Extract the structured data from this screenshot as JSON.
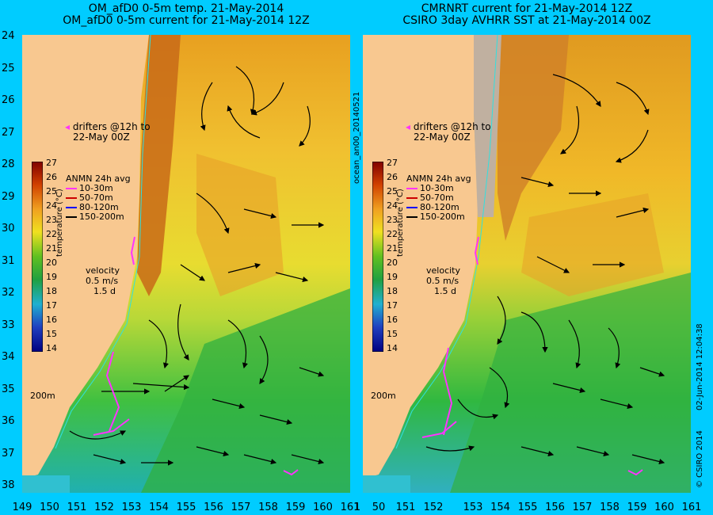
{
  "left_panel": {
    "title_line1": "OM_afD0 0-5m temp. 21-May-2014",
    "title_line2": "OM_afD0 0-5m current for 21-May-2014 12Z"
  },
  "right_panel": {
    "title_line1": "CMRNRT current for 21-May-2014 12Z",
    "title_line2": "CSIRO 3day AVHRR SST at 21-May-2014 00Z"
  },
  "y_axis_labels": [
    "24",
    "25",
    "26",
    "27",
    "28",
    "29",
    "30",
    "31",
    "32",
    "33",
    "34",
    "35",
    "36",
    "37",
    "38"
  ],
  "left_x_axis_labels": [
    "149",
    "150",
    "151",
    "152",
    "153",
    "154",
    "155",
    "156",
    "157",
    "158",
    "159",
    "160",
    "161"
  ],
  "right_x_axis_labels": [
    "153",
    "154",
    "155",
    "156",
    "157",
    "158",
    "159",
    "160",
    "161"
  ],
  "right_x_axis_first": "1",
  "right_x_axis_left_labels": [
    "50",
    "151",
    "152"
  ],
  "colorbar": {
    "ticks": [
      "27",
      "26",
      "25",
      "24",
      "23",
      "22",
      "21",
      "20",
      "19",
      "18",
      "17",
      "16",
      "15",
      "14"
    ],
    "label": "temperature (°C)"
  },
  "drifters_text_line1": "drifters @12h to",
  "drifters_text_line2": "22-May 00Z",
  "anmn": {
    "title": "ANMN 24h avg",
    "items": [
      {
        "label": "10-30m",
        "color": "#ff33ff"
      },
      {
        "label": "50-70m",
        "color": "#cc0000"
      },
      {
        "label": "80-120m",
        "color": "#0000ff"
      },
      {
        "label": "150-200m",
        "color": "#000000"
      }
    ]
  },
  "velocity": {
    "label": "velocity",
    "scale1": "0.5 m/s",
    "scale2": "1.5 d"
  },
  "depth_label": "200m",
  "side_text_left": "ocean_an00_20140521",
  "side_text_right_date": "02-Jun-2014 12:04:38",
  "side_text_right_copyright": "© CSIRO 2014"
}
